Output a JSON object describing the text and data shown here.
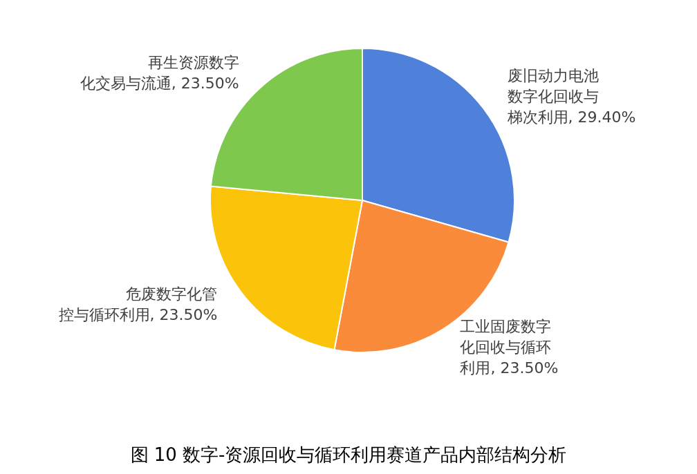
{
  "chart_data": {
    "type": "pie",
    "title": "图 10 数字-资源回收与循环利用赛道产品内部结构分析",
    "categories": [
      "废旧动力电池数字化回收与梯次利用",
      "工业固废数字化回收与循环利用",
      "危废数字化管控与循环利用",
      "再生资源数字化交易与流通"
    ],
    "values": [
      29.4,
      23.5,
      23.5,
      23.5
    ],
    "value_labels": [
      "29.40%",
      "23.50%",
      "23.50%",
      "23.50%"
    ],
    "colors": [
      "#4f81db",
      "#f98b3a",
      "#fcc30b",
      "#7ec84e"
    ],
    "legend": false
  }
}
